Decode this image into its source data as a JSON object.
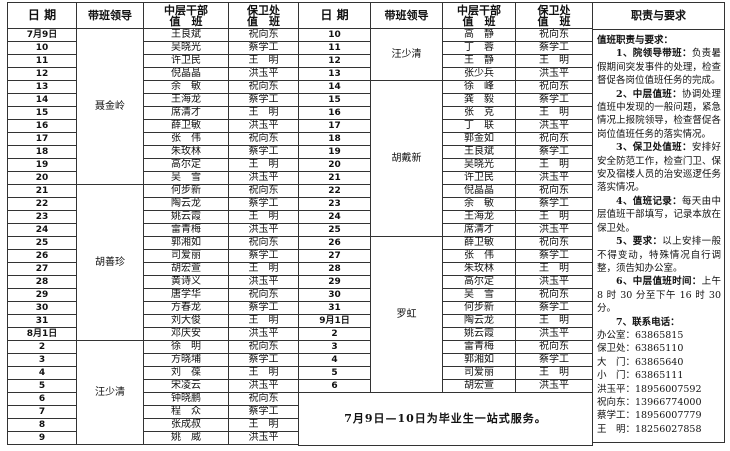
{
  "headers": {
    "date": "日 期",
    "leader": "带班领导",
    "mid": "中层干部\n值　班",
    "sec": "保卫处\n值　班",
    "duty": "职责与要求"
  },
  "left": {
    "leaders": [
      {
        "name": "聂金岭",
        "span": 12
      },
      {
        "name": "胡善珍",
        "span": 12
      },
      {
        "name": "汪少清",
        "span": 8
      }
    ],
    "rows": [
      [
        "7月9日",
        "王良斌",
        "祝向东"
      ],
      [
        "10",
        "吴晓光",
        "蔡学工"
      ],
      [
        "11",
        "许卫民",
        "王　明"
      ],
      [
        "12",
        "倪晶晶",
        "洪玉平"
      ],
      [
        "13",
        "余　敏",
        "祝向东"
      ],
      [
        "14",
        "王海龙",
        "蔡学工"
      ],
      [
        "15",
        "席清才",
        "王　明"
      ],
      [
        "16",
        "薛卫敏",
        "洪玉平"
      ],
      [
        "17",
        "张　伟",
        "祝向东"
      ],
      [
        "18",
        "朱玫林",
        "蔡学工"
      ],
      [
        "19",
        "高尔定",
        "王　明"
      ],
      [
        "20",
        "吴　雪",
        "洪玉平"
      ],
      [
        "21",
        "何步新",
        "祝向东"
      ],
      [
        "22",
        "陶云龙",
        "蔡学工"
      ],
      [
        "23",
        "姚云霞",
        "王　明"
      ],
      [
        "24",
        "雷青梅",
        "洪玉平"
      ],
      [
        "25",
        "郭湘如",
        "祝向东"
      ],
      [
        "26",
        "司爱丽",
        "蔡学工"
      ],
      [
        "27",
        "胡宏萱",
        "王　明"
      ],
      [
        "28",
        "黄诗义",
        "洪玉平"
      ],
      [
        "29",
        "唐学华",
        "祝向东"
      ],
      [
        "30",
        "方春龙",
        "蔡学工"
      ],
      [
        "31",
        "刘大俊",
        "王　明"
      ],
      [
        "8月1日",
        "邓庆安",
        "洪玉平"
      ],
      [
        "2",
        "徐　明",
        "祝向东"
      ],
      [
        "3",
        "方晓埔",
        "蔡学工"
      ],
      [
        "4",
        "刘　葆",
        "王　明"
      ],
      [
        "5",
        "宋凌云",
        "洪玉平"
      ],
      [
        "6",
        "钟晓鹏",
        "祝向东"
      ],
      [
        "7",
        "程　众",
        "蔡学工"
      ],
      [
        "8",
        "张成叔",
        "王　明"
      ],
      [
        "9",
        "姚　威",
        "洪玉平"
      ]
    ]
  },
  "mid": {
    "leaders": [
      {
        "name": "汪少清",
        "span": 4
      },
      {
        "name": "胡戴新",
        "span": 12
      },
      {
        "name": "罗虹",
        "span": 12
      }
    ],
    "rows": [
      [
        "10",
        "高　静",
        "祝向东"
      ],
      [
        "11",
        "丁　蓉",
        "蔡学工"
      ],
      [
        "12",
        "王　静",
        "王　明"
      ],
      [
        "13",
        "张少兵",
        "洪玉平"
      ],
      [
        "14",
        "徐　峰",
        "祝向东"
      ],
      [
        "15",
        "龚　毅",
        "蔡学工"
      ],
      [
        "16",
        "张　克",
        "王　明"
      ],
      [
        "17",
        "丁　联",
        "洪玉平"
      ],
      [
        "18",
        "郭金如",
        "祝向东"
      ],
      [
        "19",
        "王良斌",
        "蔡学工"
      ],
      [
        "20",
        "吴晓光",
        "王　明"
      ],
      [
        "21",
        "许卫民",
        "洪玉平"
      ],
      [
        "22",
        "倪晶晶",
        "祝向东"
      ],
      [
        "23",
        "余　敏",
        "蔡学工"
      ],
      [
        "24",
        "王海龙",
        "王　明"
      ],
      [
        "25",
        "席清才",
        "洪玉平"
      ],
      [
        "26",
        "薛卫敏",
        "祝向东"
      ],
      [
        "27",
        "张　伟",
        "蔡学工"
      ],
      [
        "28",
        "朱玫林",
        "王　明"
      ],
      [
        "29",
        "高尔定",
        "洪玉平"
      ],
      [
        "30",
        "吴　雪",
        "祝向东"
      ],
      [
        "31",
        "何步新",
        "蔡学工"
      ],
      [
        "9月1日",
        "陶云龙",
        "王　明"
      ],
      [
        "2",
        "姚云霞",
        "洪玉平"
      ],
      [
        "3",
        "雷青梅",
        "祝向东"
      ],
      [
        "4",
        "郭湘如",
        "蔡学工"
      ],
      [
        "5",
        "司爱丽",
        "王　明"
      ],
      [
        "6",
        "胡宏萱",
        "洪玉平"
      ]
    ],
    "note": "7月9日—10日为毕业生一站式服务。"
  },
  "duty": {
    "subtitle": "值班职责与要求：",
    "items": [
      {
        "head": "1、院领导带班：",
        "text": "负责暑假期间突发事件的处理，检查督促各岗位值班任务的完成。"
      },
      {
        "head": "2、中层值班：",
        "text": "协调处理值班中发现的一般问题，紧急情况上报院领导，检查督促各岗位值班任务的落实情况。"
      },
      {
        "head": "3、保卫处值班：",
        "text": "安排好安全防范工作，检查门卫、保安及宿楼人员的治安巡逻任务落实情况。"
      },
      {
        "head": "4、值班记录：",
        "text": "每天由中层值班干部填写，记录本放在保卫处。"
      },
      {
        "head": "5、要求：",
        "text": "以上安排一般不得变动，特殊情况自行调整，须告知办公室。"
      },
      {
        "head": "6、中层值班时间：",
        "text": "上午 8 时 30 分至下午 16 时 30 分。"
      },
      {
        "head": "7、联系电话：",
        "text": ""
      }
    ],
    "contacts": [
      [
        "办公室：",
        "63865815"
      ],
      [
        "保卫处：",
        "63865110"
      ],
      [
        "大　门：",
        "63865640"
      ],
      [
        "小　门：",
        "63865111"
      ],
      [
        "洪玉平：",
        "18956007592"
      ],
      [
        "祝向东：",
        "13966774000"
      ],
      [
        "蔡学工：",
        "18956007779"
      ],
      [
        "王　明：",
        "18256027858"
      ]
    ]
  }
}
